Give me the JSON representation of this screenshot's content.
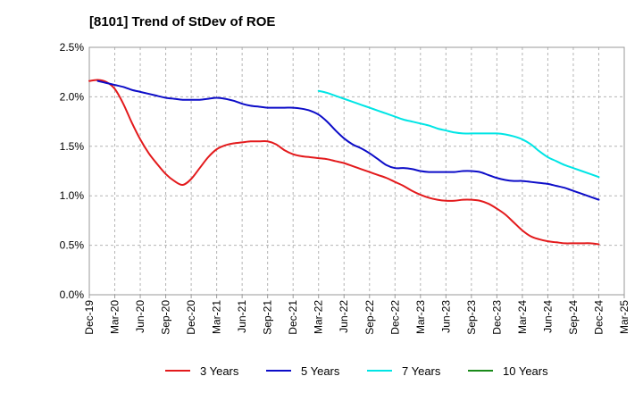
{
  "chart_data": {
    "type": "line",
    "title": "[8101]  Trend of StDev of ROE",
    "xlabel": "",
    "ylabel": "",
    "ylim": [
      0,
      2.5
    ],
    "y_ticks": [
      0,
      0.5,
      1.0,
      1.5,
      2.0,
      2.5
    ],
    "y_tick_labels": [
      "0.0%",
      "0.5%",
      "1.0%",
      "1.5%",
      "2.0%",
      "2.5%"
    ],
    "x_tick_labels": [
      "Dec-19",
      "Mar-20",
      "Jun-20",
      "Sep-20",
      "Dec-20",
      "Mar-21",
      "Jun-21",
      "Sep-21",
      "Dec-21",
      "Mar-22",
      "Jun-22",
      "Sep-22",
      "Dec-22",
      "Mar-23",
      "Jun-23",
      "Sep-23",
      "Dec-23",
      "Mar-24",
      "Jun-24",
      "Sep-24",
      "Dec-24",
      "Mar-25"
    ],
    "x_unit": "month",
    "x_range": [
      "Dec-19",
      "Mar-25"
    ],
    "grid": true,
    "legend_position": "bottom",
    "series": [
      {
        "name": "3 Years",
        "color": "#e31a1c",
        "points": [
          [
            "Dec-19",
            2.16
          ],
          [
            "Jan-20",
            2.17
          ],
          [
            "Feb-20",
            2.15
          ],
          [
            "Mar-20",
            2.08
          ],
          [
            "Apr-20",
            1.93
          ],
          [
            "May-20",
            1.74
          ],
          [
            "Jun-20",
            1.57
          ],
          [
            "Jul-20",
            1.43
          ],
          [
            "Aug-20",
            1.32
          ],
          [
            "Sep-20",
            1.22
          ],
          [
            "Oct-20",
            1.15
          ],
          [
            "Nov-20",
            1.11
          ],
          [
            "Dec-20",
            1.17
          ],
          [
            "Jan-21",
            1.28
          ],
          [
            "Feb-21",
            1.39
          ],
          [
            "Mar-21",
            1.47
          ],
          [
            "Apr-21",
            1.51
          ],
          [
            "May-21",
            1.53
          ],
          [
            "Jun-21",
            1.54
          ],
          [
            "Jul-21",
            1.55
          ],
          [
            "Aug-21",
            1.55
          ],
          [
            "Sep-21",
            1.55
          ],
          [
            "Oct-21",
            1.52
          ],
          [
            "Nov-21",
            1.46
          ],
          [
            "Dec-21",
            1.42
          ],
          [
            "Jan-22",
            1.4
          ],
          [
            "Feb-22",
            1.39
          ],
          [
            "Mar-22",
            1.38
          ],
          [
            "Apr-22",
            1.37
          ],
          [
            "May-22",
            1.35
          ],
          [
            "Jun-22",
            1.33
          ],
          [
            "Jul-22",
            1.3
          ],
          [
            "Aug-22",
            1.27
          ],
          [
            "Sep-22",
            1.24
          ],
          [
            "Oct-22",
            1.21
          ],
          [
            "Nov-22",
            1.18
          ],
          [
            "Dec-22",
            1.14
          ],
          [
            "Jan-23",
            1.1
          ],
          [
            "Feb-23",
            1.05
          ],
          [
            "Mar-23",
            1.01
          ],
          [
            "Apr-23",
            0.98
          ],
          [
            "May-23",
            0.96
          ],
          [
            "Jun-23",
            0.95
          ],
          [
            "Jul-23",
            0.95
          ],
          [
            "Aug-23",
            0.96
          ],
          [
            "Sep-23",
            0.96
          ],
          [
            "Oct-23",
            0.95
          ],
          [
            "Nov-23",
            0.92
          ],
          [
            "Dec-23",
            0.87
          ],
          [
            "Jan-24",
            0.81
          ],
          [
            "Feb-24",
            0.73
          ],
          [
            "Mar-24",
            0.65
          ],
          [
            "Apr-24",
            0.59
          ],
          [
            "May-24",
            0.56
          ],
          [
            "Jun-24",
            0.54
          ],
          [
            "Jul-24",
            0.53
          ],
          [
            "Aug-24",
            0.52
          ],
          [
            "Sep-24",
            0.52
          ],
          [
            "Oct-24",
            0.52
          ],
          [
            "Nov-24",
            0.52
          ],
          [
            "Dec-24",
            0.51
          ]
        ]
      },
      {
        "name": "5 Years",
        "color": "#0c0cc8",
        "points": [
          [
            "Jan-20",
            2.16
          ],
          [
            "Feb-20",
            2.14
          ],
          [
            "Mar-20",
            2.12
          ],
          [
            "Apr-20",
            2.1
          ],
          [
            "May-20",
            2.07
          ],
          [
            "Jun-20",
            2.05
          ],
          [
            "Jul-20",
            2.03
          ],
          [
            "Aug-20",
            2.01
          ],
          [
            "Sep-20",
            1.99
          ],
          [
            "Oct-20",
            1.98
          ],
          [
            "Nov-20",
            1.97
          ],
          [
            "Dec-20",
            1.97
          ],
          [
            "Jan-21",
            1.97
          ],
          [
            "Feb-21",
            1.98
          ],
          [
            "Mar-21",
            1.99
          ],
          [
            "Apr-21",
            1.98
          ],
          [
            "May-21",
            1.96
          ],
          [
            "Jun-21",
            1.93
          ],
          [
            "Jul-21",
            1.91
          ],
          [
            "Aug-21",
            1.9
          ],
          [
            "Sep-21",
            1.89
          ],
          [
            "Oct-21",
            1.89
          ],
          [
            "Nov-21",
            1.89
          ],
          [
            "Dec-21",
            1.89
          ],
          [
            "Jan-22",
            1.88
          ],
          [
            "Feb-22",
            1.86
          ],
          [
            "Mar-22",
            1.82
          ],
          [
            "Apr-22",
            1.75
          ],
          [
            "May-22",
            1.66
          ],
          [
            "Jun-22",
            1.58
          ],
          [
            "Jul-22",
            1.52
          ],
          [
            "Aug-22",
            1.48
          ],
          [
            "Sep-22",
            1.43
          ],
          [
            "Oct-22",
            1.37
          ],
          [
            "Nov-22",
            1.31
          ],
          [
            "Dec-22",
            1.28
          ],
          [
            "Jan-23",
            1.28
          ],
          [
            "Feb-23",
            1.27
          ],
          [
            "Mar-23",
            1.25
          ],
          [
            "Apr-23",
            1.24
          ],
          [
            "May-23",
            1.24
          ],
          [
            "Jun-23",
            1.24
          ],
          [
            "Jul-23",
            1.24
          ],
          [
            "Aug-23",
            1.25
          ],
          [
            "Sep-23",
            1.25
          ],
          [
            "Oct-23",
            1.24
          ],
          [
            "Nov-23",
            1.21
          ],
          [
            "Dec-23",
            1.18
          ],
          [
            "Jan-24",
            1.16
          ],
          [
            "Feb-24",
            1.15
          ],
          [
            "Mar-24",
            1.15
          ],
          [
            "Apr-24",
            1.14
          ],
          [
            "May-24",
            1.13
          ],
          [
            "Jun-24",
            1.12
          ],
          [
            "Jul-24",
            1.1
          ],
          [
            "Aug-24",
            1.08
          ],
          [
            "Sep-24",
            1.05
          ],
          [
            "Oct-24",
            1.02
          ],
          [
            "Nov-24",
            0.99
          ],
          [
            "Dec-24",
            0.96
          ]
        ]
      },
      {
        "name": "7 Years",
        "color": "#00e5e5",
        "points": [
          [
            "Mar-22",
            2.06
          ],
          [
            "Apr-22",
            2.04
          ],
          [
            "May-22",
            2.01
          ],
          [
            "Jun-22",
            1.98
          ],
          [
            "Jul-22",
            1.95
          ],
          [
            "Aug-22",
            1.92
          ],
          [
            "Sep-22",
            1.89
          ],
          [
            "Oct-22",
            1.86
          ],
          [
            "Nov-22",
            1.83
          ],
          [
            "Dec-22",
            1.8
          ],
          [
            "Jan-23",
            1.77
          ],
          [
            "Feb-23",
            1.75
          ],
          [
            "Mar-23",
            1.73
          ],
          [
            "Apr-23",
            1.71
          ],
          [
            "May-23",
            1.68
          ],
          [
            "Jun-23",
            1.66
          ],
          [
            "Jul-23",
            1.64
          ],
          [
            "Aug-23",
            1.63
          ],
          [
            "Sep-23",
            1.63
          ],
          [
            "Oct-23",
            1.63
          ],
          [
            "Nov-23",
            1.63
          ],
          [
            "Dec-23",
            1.63
          ],
          [
            "Jan-24",
            1.62
          ],
          [
            "Feb-24",
            1.6
          ],
          [
            "Mar-24",
            1.57
          ],
          [
            "Apr-24",
            1.52
          ],
          [
            "May-24",
            1.45
          ],
          [
            "Jun-24",
            1.39
          ],
          [
            "Jul-24",
            1.35
          ],
          [
            "Aug-24",
            1.31
          ],
          [
            "Sep-24",
            1.28
          ],
          [
            "Oct-24",
            1.25
          ],
          [
            "Nov-24",
            1.22
          ],
          [
            "Dec-24",
            1.19
          ]
        ]
      },
      {
        "name": "10 Years",
        "color": "#1a8a1a",
        "points": []
      }
    ]
  }
}
